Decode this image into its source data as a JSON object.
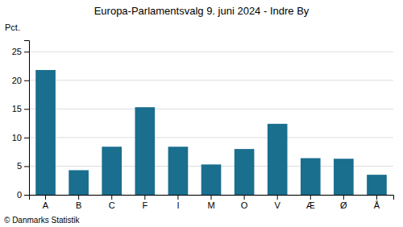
{
  "chart_data": {
    "type": "bar",
    "title": "Europa-Parlamentsvalg 9. juni 2024 - Indre By",
    "ylabel": "Pct.",
    "annotations": [
      "© Danmarks Statistik"
    ],
    "categories": [
      "A",
      "B",
      "C",
      "F",
      "I",
      "M",
      "O",
      "V",
      "Æ",
      "Ø",
      "Å"
    ],
    "values": [
      21.8,
      4.3,
      8.4,
      15.3,
      8.4,
      5.3,
      8.0,
      12.4,
      6.4,
      6.3,
      3.5
    ],
    "color": "#1a6e8e",
    "ylim": [
      0,
      27
    ],
    "yticks": [
      0,
      5,
      10,
      15,
      20,
      25
    ],
    "grid": true
  }
}
